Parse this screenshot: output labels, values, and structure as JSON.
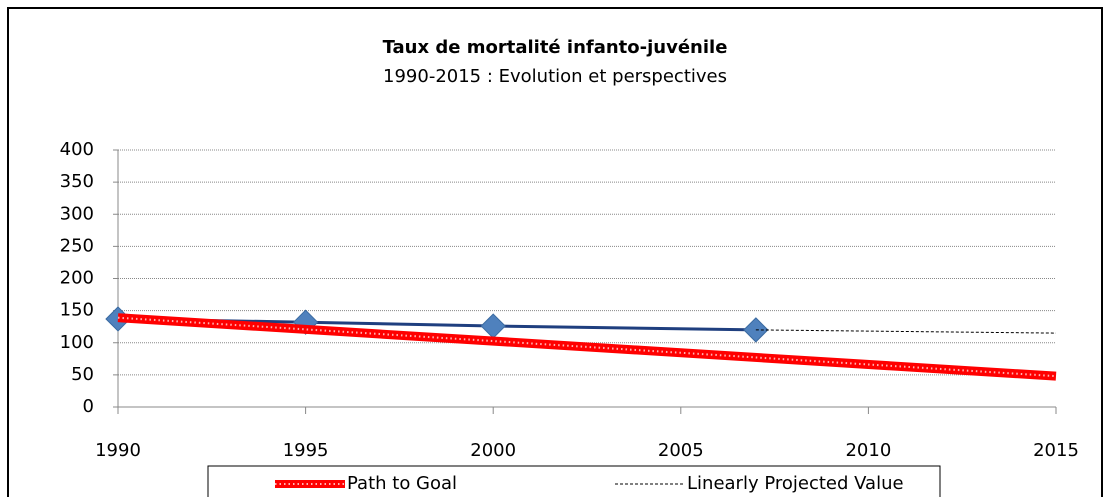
{
  "chart_data": {
    "type": "line",
    "title": "Taux de mortalité infanto-juvénile",
    "subtitle": "1990-2015 : Evolution et perspectives",
    "series": [
      {
        "color": "#4f81bd",
        "marker": "diamond",
        "x": [
          1990,
          1995,
          2000,
          2007
        ],
        "values": [
          137,
          132,
          126,
          120
        ]
      },
      {
        "name": "Path to Goal",
        "color": "#ff0000",
        "style": "thick-dotted",
        "x": [
          1990,
          2015
        ],
        "values": [
          139,
          48
        ]
      },
      {
        "name": "Linearly Projected Value",
        "color": "#000000",
        "style": "dashed",
        "x": [
          2007,
          2015
        ],
        "values": [
          120,
          115
        ]
      }
    ],
    "xlim": [
      1990,
      2015
    ],
    "xticks": [
      1990,
      1995,
      2000,
      2005,
      2010,
      2015
    ],
    "ylim": [
      0,
      400
    ],
    "yticks": [
      0,
      50,
      100,
      150,
      200,
      250,
      300,
      350,
      400
    ],
    "grid": true,
    "legend": "bottom"
  }
}
